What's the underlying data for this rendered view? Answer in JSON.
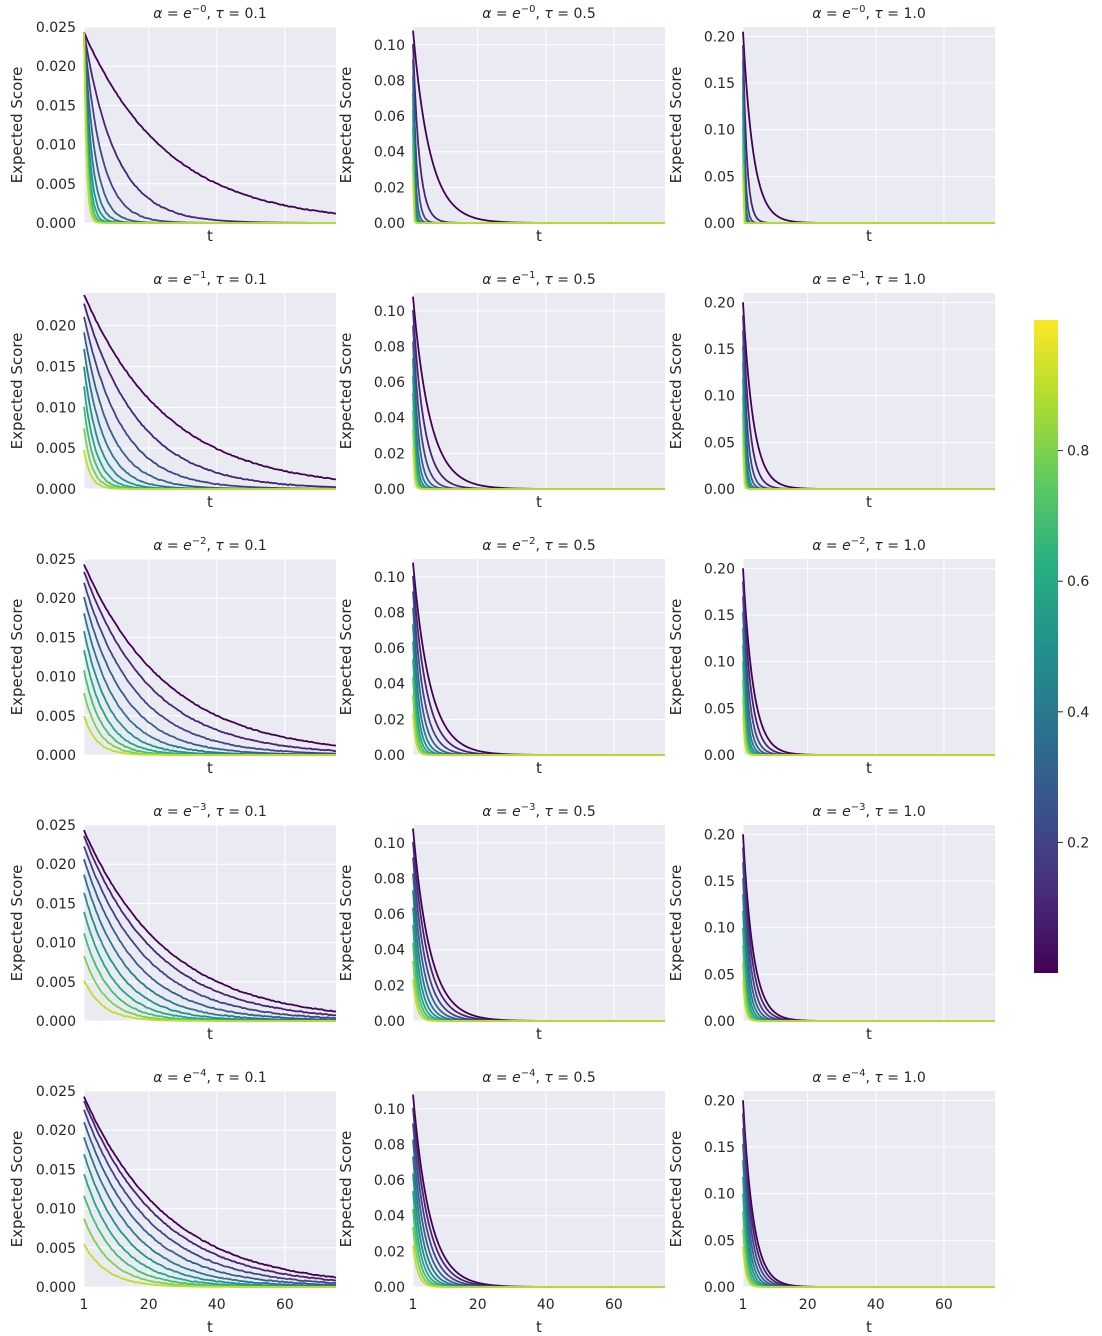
{
  "figure": {
    "ylabel": "Expected Score",
    "xlabel": "t",
    "x_ticks": [
      1,
      20,
      40,
      60
    ],
    "colorbar": {
      "colormap": "viridis",
      "range": [
        0,
        1
      ],
      "ticks": [
        "0.2",
        "0.4",
        "0.6",
        "0.8"
      ]
    },
    "colors": {
      "axes_background": "#eaeaf2",
      "grid": "#ffffff",
      "text": "#262626"
    }
  },
  "chart_data": [
    {
      "type": "line",
      "title_alpha_exp": "−0",
      "title_tau": "0.1",
      "xlim": [
        1,
        75
      ],
      "ylim": [
        0,
        0.025
      ],
      "y_ticks": [
        "0.000",
        "0.005",
        "0.010",
        "0.015",
        "0.020",
        "0.025"
      ],
      "y0": 0.0243,
      "decay_rate": 0.0404,
      "alpha_index": 0,
      "curves": [
        {
          "color_value": 0.0,
          "decay": 0.0404
        },
        {
          "color_value": 0.1,
          "decay": 0.24
        },
        {
          "color_value": 0.2,
          "decay": 0.55
        },
        {
          "color_value": 0.3,
          "decay": 1.1
        },
        {
          "color_value": 0.4,
          "decay": 2.0
        },
        {
          "color_value": 0.5,
          "decay": 3.5
        },
        {
          "color_value": 0.6,
          "decay": 5.5
        },
        {
          "color_value": 0.7,
          "decay": 8.0
        },
        {
          "color_value": 0.8,
          "decay": 12.0
        },
        {
          "color_value": 0.9,
          "decay": 18.0
        }
      ],
      "show_x_ticks": false
    },
    {
      "type": "line",
      "title_alpha_exp": "−0",
      "title_tau": "0.5",
      "xlim": [
        1,
        75
      ],
      "ylim": [
        0,
        0.11
      ],
      "y_ticks": [
        "0.00",
        "0.02",
        "0.04",
        "0.06",
        "0.08",
        "0.10"
      ],
      "y0": 0.108,
      "decay_rate": 0.2,
      "alpha_index": 0,
      "show_x_ticks": false
    },
    {
      "type": "line",
      "title_alpha_exp": "−0",
      "title_tau": "1.0",
      "xlim": [
        1,
        75
      ],
      "ylim": [
        0,
        0.21
      ],
      "y_ticks": [
        "0.00",
        "0.05",
        "0.10",
        "0.15",
        "0.20"
      ],
      "y0": 0.205,
      "decay_rate": 0.33,
      "alpha_index": 0,
      "show_x_ticks": false
    },
    {
      "type": "line",
      "title_alpha_exp": "−1",
      "title_tau": "0.1",
      "xlim": [
        1,
        75
      ],
      "ylim": [
        0,
        0.024
      ],
      "y_ticks": [
        "0.000",
        "0.005",
        "0.010",
        "0.015",
        "0.020"
      ],
      "y0": 0.0238,
      "decay_rate": 0.0404,
      "alpha_index": 1,
      "show_x_ticks": false
    },
    {
      "type": "line",
      "title_alpha_exp": "−1",
      "title_tau": "0.5",
      "xlim": [
        1,
        75
      ],
      "ylim": [
        0,
        0.11
      ],
      "y_ticks": [
        "0.00",
        "0.02",
        "0.04",
        "0.06",
        "0.08",
        "0.10"
      ],
      "y0": 0.108,
      "decay_rate": 0.2,
      "alpha_index": 1,
      "show_x_ticks": false
    },
    {
      "type": "line",
      "title_alpha_exp": "−1",
      "title_tau": "1.0",
      "xlim": [
        1,
        75
      ],
      "ylim": [
        0,
        0.21
      ],
      "y_ticks": [
        "0.00",
        "0.05",
        "0.10",
        "0.15",
        "0.20"
      ],
      "y0": 0.2,
      "decay_rate": 0.33,
      "alpha_index": 1,
      "show_x_ticks": false
    },
    {
      "type": "line",
      "title_alpha_exp": "−2",
      "title_tau": "0.1",
      "xlim": [
        1,
        75
      ],
      "ylim": [
        0,
        0.025
      ],
      "y_ticks": [
        "0.000",
        "0.005",
        "0.010",
        "0.015",
        "0.020",
        "0.025"
      ],
      "y0": 0.0243,
      "decay_rate": 0.0404,
      "alpha_index": 2,
      "show_x_ticks": false
    },
    {
      "type": "line",
      "title_alpha_exp": "−2",
      "title_tau": "0.5",
      "xlim": [
        1,
        75
      ],
      "ylim": [
        0,
        0.11
      ],
      "y_ticks": [
        "0.00",
        "0.02",
        "0.04",
        "0.06",
        "0.08",
        "0.10"
      ],
      "y0": 0.108,
      "decay_rate": 0.2,
      "alpha_index": 2,
      "show_x_ticks": false
    },
    {
      "type": "line",
      "title_alpha_exp": "−2",
      "title_tau": "1.0",
      "xlim": [
        1,
        75
      ],
      "ylim": [
        0,
        0.21
      ],
      "y_ticks": [
        "0.00",
        "0.05",
        "0.10",
        "0.15",
        "0.20"
      ],
      "y0": 0.2,
      "decay_rate": 0.33,
      "alpha_index": 2,
      "show_x_ticks": false
    },
    {
      "type": "line",
      "title_alpha_exp": "−3",
      "title_tau": "0.1",
      "xlim": [
        1,
        75
      ],
      "ylim": [
        0,
        0.025
      ],
      "y_ticks": [
        "0.000",
        "0.005",
        "0.010",
        "0.015",
        "0.020",
        "0.025"
      ],
      "y0": 0.0243,
      "decay_rate": 0.0404,
      "alpha_index": 3,
      "show_x_ticks": false
    },
    {
      "type": "line",
      "title_alpha_exp": "−3",
      "title_tau": "0.5",
      "xlim": [
        1,
        75
      ],
      "ylim": [
        0,
        0.11
      ],
      "y_ticks": [
        "0.00",
        "0.02",
        "0.04",
        "0.06",
        "0.08",
        "0.10"
      ],
      "y0": 0.108,
      "decay_rate": 0.2,
      "alpha_index": 3,
      "show_x_ticks": false
    },
    {
      "type": "line",
      "title_alpha_exp": "−3",
      "title_tau": "1.0",
      "xlim": [
        1,
        75
      ],
      "ylim": [
        0,
        0.21
      ],
      "y_ticks": [
        "0.00",
        "0.05",
        "0.10",
        "0.15",
        "0.20"
      ],
      "y0": 0.2,
      "decay_rate": 0.33,
      "alpha_index": 3,
      "show_x_ticks": false
    },
    {
      "type": "line",
      "title_alpha_exp": "−4",
      "title_tau": "0.1",
      "xlim": [
        1,
        75
      ],
      "ylim": [
        0,
        0.025
      ],
      "y_ticks": [
        "0.000",
        "0.005",
        "0.010",
        "0.015",
        "0.020",
        "0.025"
      ],
      "y0": 0.0243,
      "decay_rate": 0.0404,
      "alpha_index": 4,
      "show_x_ticks": true
    },
    {
      "type": "line",
      "title_alpha_exp": "−4",
      "title_tau": "0.5",
      "xlim": [
        1,
        75
      ],
      "ylim": [
        0,
        0.11
      ],
      "y_ticks": [
        "0.00",
        "0.02",
        "0.04",
        "0.06",
        "0.08",
        "0.10"
      ],
      "y0": 0.108,
      "decay_rate": 0.2,
      "alpha_index": 4,
      "show_x_ticks": true
    },
    {
      "type": "line",
      "title_alpha_exp": "−4",
      "title_tau": "1.0",
      "xlim": [
        1,
        75
      ],
      "ylim": [
        0,
        0.21
      ],
      "y_ticks": [
        "0.00",
        "0.05",
        "0.10",
        "0.15",
        "0.20"
      ],
      "y0": 0.2,
      "decay_rate": 0.33,
      "alpha_index": 4,
      "show_x_ticks": true
    }
  ]
}
